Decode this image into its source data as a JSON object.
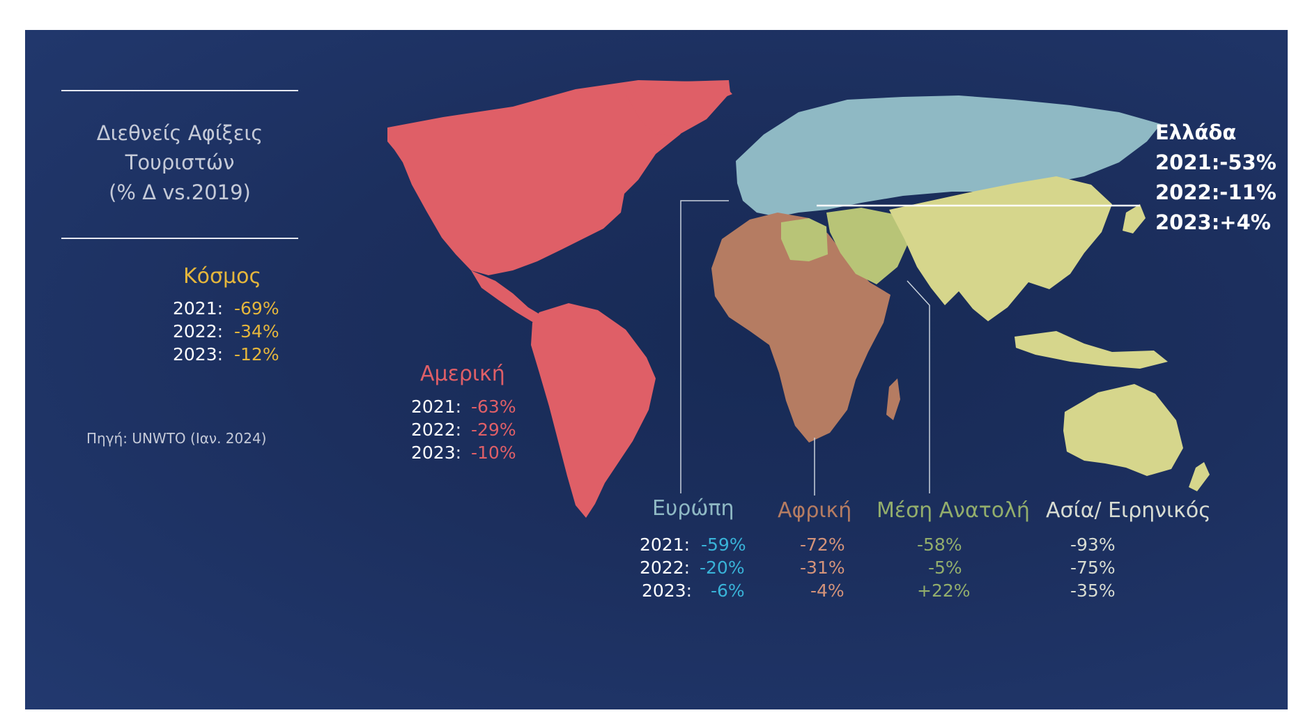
{
  "title": {
    "line1": "Διεθνείς Αφίξεις",
    "line2": "Τουριστών",
    "line3": "(% Δ vs.2019)"
  },
  "source": "Πηγή: UNWTO (Ιαν. 2024)",
  "colors": {
    "world": "#e5b63c",
    "america": "#df5f67",
    "europe": "#8fb9c4",
    "europe_value": "#39b3d8",
    "africa": "#b57c62",
    "africa_value": "#d4937a",
    "middle_east": "#b8c477",
    "middle_east_value": "#93ae6c",
    "asia_pacific": "#d6d68c",
    "asia_value": "#d8dcd2",
    "greece": "#ffffff"
  },
  "years": [
    "2021:",
    "2022:",
    "2023:"
  ],
  "world": {
    "name": "Κόσμος",
    "values": [
      "-69%",
      "-34%",
      "-12%"
    ]
  },
  "america": {
    "name": "Αμερική",
    "values": [
      "-63%",
      "-29%",
      "-10%"
    ]
  },
  "europe": {
    "name": "Ευρώπη",
    "values": [
      "-59%",
      "-20%",
      "-6%"
    ]
  },
  "africa": {
    "name": "Αφρική",
    "values": [
      "-72%",
      "-31%",
      "-4%"
    ]
  },
  "middle_east": {
    "name": "Μέση Ανατολή",
    "values": [
      "-58%",
      "-5%",
      "+22%"
    ]
  },
  "asia_pacific": {
    "name": "Ασία/ Ειρηνικός",
    "values": [
      "-93%",
      "-75%",
      "-35%"
    ]
  },
  "greece": {
    "name": "Ελλάδα",
    "lines": [
      "2021:-53%",
      "2022:-11%",
      "2023:+4%"
    ]
  }
}
